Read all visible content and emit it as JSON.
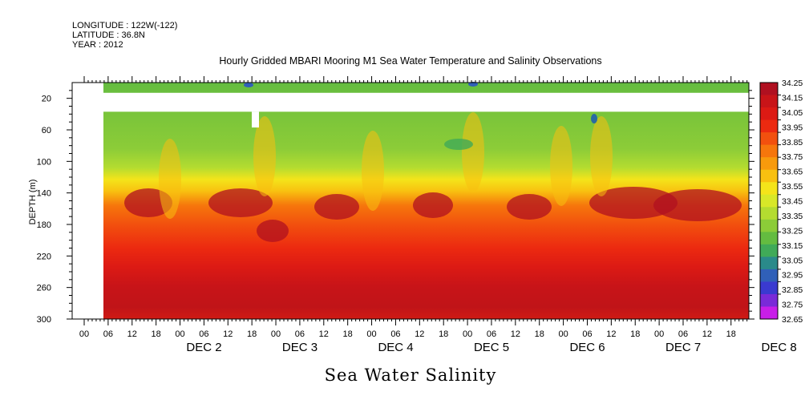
{
  "meta": {
    "longitude": "LONGITUDE : 122W(-122)",
    "latitude": "LATITUDE : 36.8N",
    "year": "YEAR : 2012"
  },
  "chart_data": {
    "type": "heatmap",
    "title": "Hourly Gridded MBARI Mooring M1 Sea Water Temperature and Salinity Observations",
    "xlabel": "Sea Water Salinity",
    "ylabel": "DEPTH (m)",
    "ylim": [
      300,
      0
    ],
    "y_ticks": [
      20,
      60,
      100,
      140,
      180,
      220,
      260,
      300
    ],
    "x_hours": [
      "00",
      "06",
      "12",
      "18"
    ],
    "days": [
      "DEC  2",
      "DEC  3",
      "DEC  4",
      "DEC  5",
      "DEC  6",
      "DEC  7",
      "DEC  8"
    ],
    "colorbar": {
      "levels": [
        34.25,
        34.15,
        34.05,
        33.95,
        33.85,
        33.75,
        33.65,
        33.55,
        33.45,
        33.35,
        33.25,
        33.15,
        33.05,
        32.95,
        32.85,
        32.75,
        32.65
      ],
      "colors": [
        "#b01020",
        "#c81418",
        "#dc1a14",
        "#ec2a10",
        "#f2500e",
        "#f6760c",
        "#f89a0c",
        "#f8c010",
        "#f4e41a",
        "#d8e828",
        "#b4dc30",
        "#8ccc38",
        "#64bc40",
        "#40aa58",
        "#2a8a8a",
        "#3060b8",
        "#3a3ad0",
        "#7a2ad8",
        "#c81ee8"
      ]
    },
    "profile": [
      {
        "depth": 8,
        "salinity": 33.3
      },
      {
        "depth": 40,
        "salinity": 33.3
      },
      {
        "depth": 80,
        "salinity": 33.35
      },
      {
        "depth": 110,
        "salinity": 33.5
      },
      {
        "depth": 140,
        "salinity": 33.75
      },
      {
        "depth": 180,
        "salinity": 33.95
      },
      {
        "depth": 220,
        "salinity": 34.05
      },
      {
        "depth": 250,
        "salinity": 34.15
      },
      {
        "depth": 280,
        "salinity": 34.2
      },
      {
        "depth": 300,
        "salinity": 34.1
      }
    ],
    "missing_data": [
      {
        "start_time": "DEC 1 00:00",
        "end_time": "DEC 1 05:00",
        "depth_range": [
          0,
          300
        ]
      },
      {
        "start_time": "DEC 1 05:00",
        "end_time": "DEC 8 24:00",
        "depth_range": [
          13,
          37
        ]
      },
      {
        "start_time": "DEC 3 04:00",
        "end_time": "DEC 3 05:00",
        "depth_range": [
          37,
          57
        ]
      }
    ]
  }
}
